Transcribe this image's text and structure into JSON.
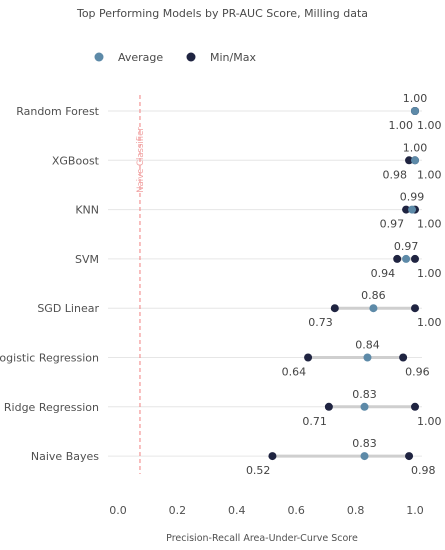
{
  "chart_data": {
    "type": "dumbbell",
    "title": "Top Performing Models by PR-AUC Score, Milling data",
    "xlabel": "Precision-Recall Area-Under-Curve Score",
    "ylabel": "",
    "xlim": [
      0.0,
      1.0
    ],
    "xticks": [
      "0.0",
      "0.2",
      "0.4",
      "0.6",
      "0.8",
      "1.0"
    ],
    "grid": "horizontal",
    "legend": {
      "placement": "top-left",
      "entries": [
        {
          "label": "Average",
          "color": "#5d8aa8"
        },
        {
          "label": "Min/Max",
          "color": "#1f2441"
        }
      ]
    },
    "reference_line": {
      "label": "Naive Classifier",
      "x": 0.074,
      "color": "#f08080"
    },
    "categories": [
      "Random Forest",
      "XGBoost",
      "KNN",
      "SVM",
      "SGD Linear",
      "Logistic Regression",
      "Ridge Regression",
      "Naive Bayes"
    ],
    "series": [
      {
        "name": "Average",
        "values": [
          1.0,
          1.0,
          0.99,
          0.97,
          0.86,
          0.84,
          0.83,
          0.83
        ]
      },
      {
        "name": "Min",
        "values": [
          1.0,
          0.98,
          0.97,
          0.94,
          0.73,
          0.64,
          0.71,
          0.52
        ]
      },
      {
        "name": "Max",
        "values": [
          1.0,
          1.0,
          1.0,
          1.0,
          1.0,
          0.96,
          1.0,
          0.98
        ]
      }
    ],
    "value_labels": {
      "average": [
        "1.00",
        "1.00",
        "0.99",
        "0.97",
        "0.86",
        "0.84",
        "0.83",
        "0.83"
      ],
      "min": [
        "1.00",
        "0.98",
        "0.97",
        "0.94",
        "0.73",
        "0.64",
        "0.71",
        "0.52"
      ],
      "max": [
        "1.00",
        "1.00",
        "1.00",
        "1.00",
        "1.00",
        "0.96",
        "1.00",
        "0.98"
      ]
    },
    "colors": {
      "average": "#5d8aa8",
      "minmax": "#1f2441",
      "range_bar": "#cfcfcf",
      "grid": "#e6e6e6"
    }
  }
}
